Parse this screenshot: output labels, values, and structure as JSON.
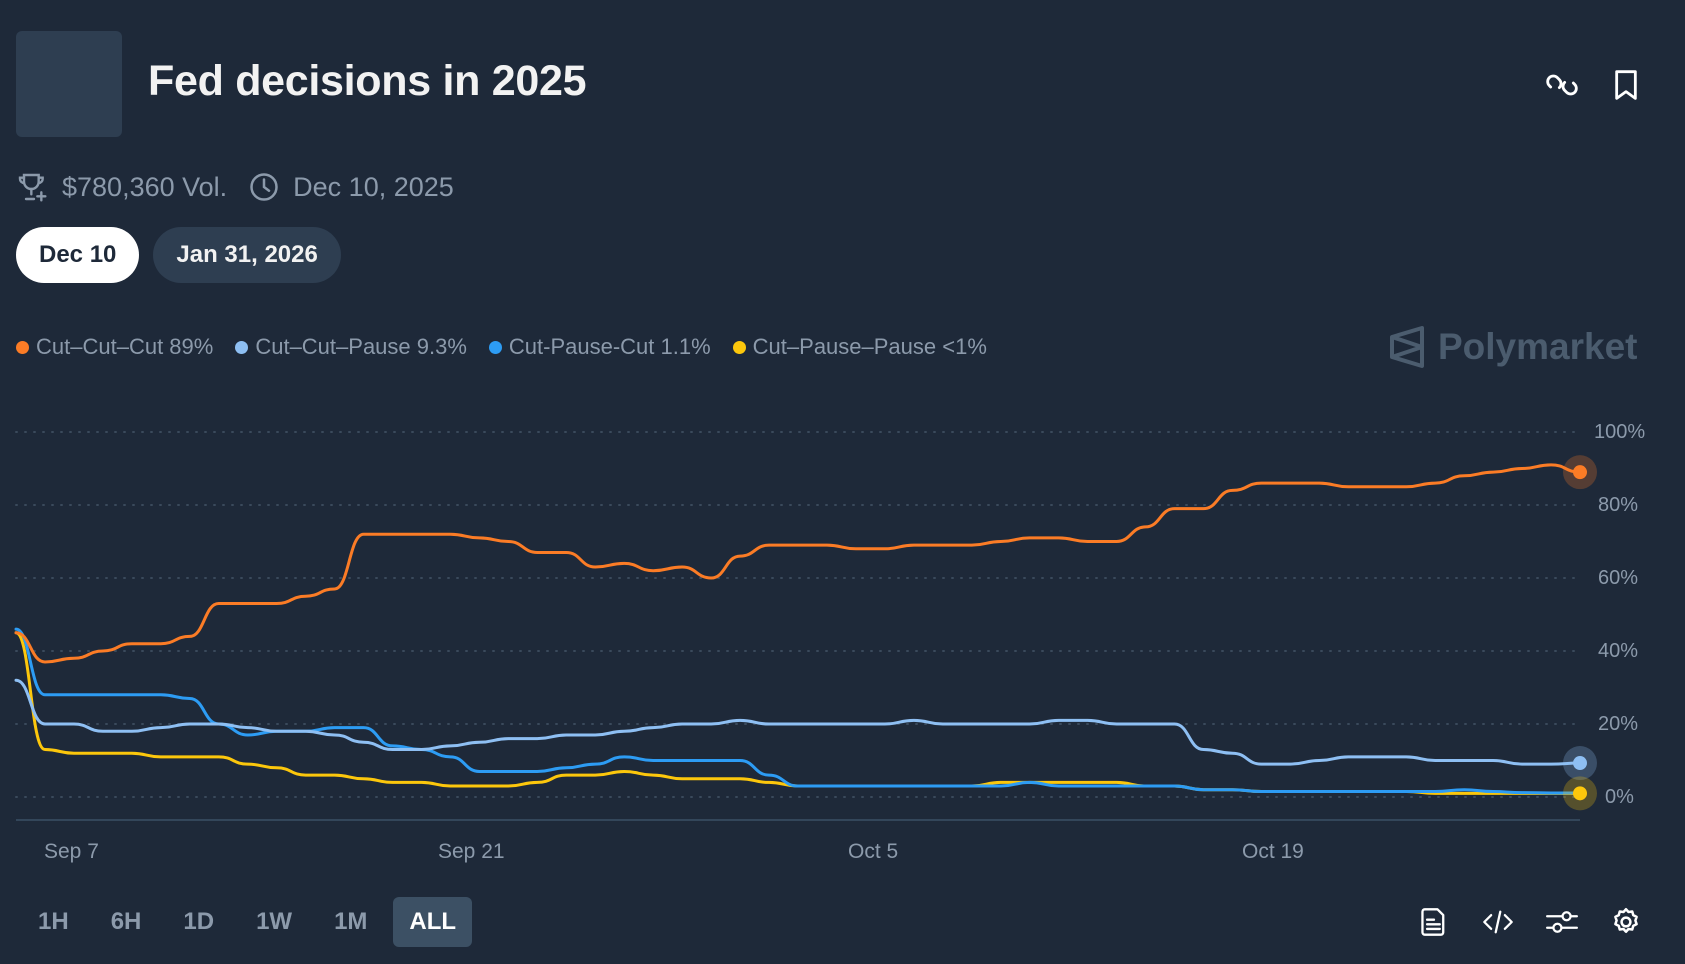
{
  "header": {
    "title": "Fed decisions in 2025",
    "actions": [
      {
        "name": "copy-link",
        "icon": "link-icon"
      },
      {
        "name": "bookmark",
        "icon": "bookmark-icon"
      }
    ]
  },
  "meta": {
    "volume": "$780,360 Vol.",
    "volume_icon": "trophy-icon",
    "end_date": "Dec 10, 2025",
    "end_date_icon": "clock-icon"
  },
  "date_tabs": [
    {
      "label": "Dec 10",
      "active": true
    },
    {
      "label": "Jan 31, 2026",
      "active": false
    }
  ],
  "legend": [
    {
      "label": "Cut–Cut–Cut 89%",
      "color": "#fb7c26"
    },
    {
      "label": "Cut–Cut–Pause 9.3%",
      "color": "#8ebff3"
    },
    {
      "label": "Cut-Pause-Cut 1.1%",
      "color": "#2d9cf4"
    },
    {
      "label": "Cut–Pause–Pause <1%",
      "color": "#fcc70c"
    }
  ],
  "watermark": "Polymarket",
  "range_buttons": [
    {
      "label": "1H",
      "active": false
    },
    {
      "label": "6H",
      "active": false
    },
    {
      "label": "1D",
      "active": false
    },
    {
      "label": "1W",
      "active": false
    },
    {
      "label": "1M",
      "active": false
    },
    {
      "label": "ALL",
      "active": true
    }
  ],
  "tools": [
    {
      "name": "document",
      "icon": "document-icon"
    },
    {
      "name": "embed",
      "icon": "code-icon"
    },
    {
      "name": "filters",
      "icon": "sliders-icon"
    },
    {
      "name": "settings",
      "icon": "gear-icon"
    }
  ],
  "chart_data": {
    "type": "line",
    "title": "Fed decisions in 2025",
    "xlabel": "",
    "ylabel": "",
    "ylim": [
      0,
      100
    ],
    "y_ticks": [
      "0%",
      "20%",
      "40%",
      "60%",
      "80%",
      "100%"
    ],
    "x_ticks": [
      "Sep 7",
      "Sep 21",
      "Oct 5",
      "Oct 19"
    ],
    "grid": true,
    "legend_position": "top-left",
    "x": [
      "Sep 5",
      "Sep 6",
      "Sep 7",
      "Sep 8",
      "Sep 9",
      "Sep 10",
      "Sep 11",
      "Sep 12",
      "Sep 13",
      "Sep 14",
      "Sep 15",
      "Sep 16",
      "Sep 17",
      "Sep 18",
      "Sep 19",
      "Sep 20",
      "Sep 21",
      "Sep 22",
      "Sep 23",
      "Sep 24",
      "Sep 25",
      "Sep 26",
      "Sep 27",
      "Sep 28",
      "Sep 29",
      "Sep 30",
      "Oct 1",
      "Oct 2",
      "Oct 3",
      "Oct 4",
      "Oct 5",
      "Oct 6",
      "Oct 7",
      "Oct 8",
      "Oct 9",
      "Oct 10",
      "Oct 11",
      "Oct 12",
      "Oct 13",
      "Oct 14",
      "Oct 15",
      "Oct 16",
      "Oct 17",
      "Oct 18",
      "Oct 19",
      "Oct 20",
      "Oct 21",
      "Oct 22",
      "Oct 23",
      "Oct 24",
      "Oct 25",
      "Oct 26",
      "Oct 27",
      "Oct 28",
      "Oct 29"
    ],
    "series": [
      {
        "name": "Cut–Cut–Cut",
        "color": "#fb7c26",
        "current": "89%",
        "values": [
          45,
          37,
          38,
          40,
          42,
          42,
          44,
          53,
          53,
          53,
          55,
          57,
          72,
          72,
          72,
          72,
          71,
          70,
          67,
          67,
          63,
          64,
          62,
          63,
          60,
          66,
          69,
          69,
          69,
          68,
          68,
          69,
          69,
          69,
          70,
          71,
          71,
          70,
          70,
          74,
          79,
          79,
          84,
          86,
          86,
          86,
          85,
          85,
          85,
          86,
          88,
          89,
          90,
          91,
          89
        ]
      },
      {
        "name": "Cut–Cut–Pause",
        "color": "#8ebff3",
        "current": "9.3%",
        "values": [
          32,
          20,
          20,
          18,
          18,
          19,
          20,
          20,
          19,
          18,
          18,
          17,
          15,
          13,
          13,
          14,
          15,
          16,
          16,
          17,
          17,
          18,
          19,
          20,
          20,
          21,
          20,
          20,
          20,
          20,
          20,
          21,
          20,
          20,
          20,
          20,
          21,
          21,
          20,
          20,
          20,
          13,
          12,
          9,
          9,
          10,
          11,
          11,
          11,
          10,
          10,
          10,
          9,
          9,
          9.3
        ]
      },
      {
        "name": "Cut-Pause-Cut",
        "color": "#2d9cf4",
        "current": "1.1%",
        "values": [
          46,
          28,
          28,
          28,
          28,
          28,
          27,
          20,
          17,
          18,
          18,
          19,
          19,
          14,
          13,
          11,
          7,
          7,
          7,
          8,
          9,
          11,
          10,
          10,
          10,
          10,
          6,
          3,
          3,
          3,
          3,
          3,
          3,
          3,
          3,
          4,
          3,
          3,
          3,
          3,
          3,
          2,
          2,
          1.5,
          1.5,
          1.5,
          1.5,
          1.5,
          1.5,
          1.5,
          2,
          1.5,
          1.2,
          1.1,
          1.1
        ]
      },
      {
        "name": "Cut–Pause–Pause",
        "color": "#fcc70c",
        "current": "<1%",
        "values": [
          45,
          13,
          12,
          12,
          12,
          11,
          11,
          11,
          9,
          8,
          6,
          6,
          5,
          4,
          4,
          3,
          3,
          3,
          4,
          6,
          6,
          7,
          6,
          5,
          5,
          5,
          4,
          3,
          3,
          3,
          3,
          3,
          3,
          3,
          4,
          4,
          4,
          4,
          4,
          3,
          3,
          2,
          2,
          1.5,
          1.5,
          1.5,
          1.5,
          1.5,
          1.5,
          1,
          1,
          1,
          1,
          1,
          1
        ]
      }
    ]
  }
}
